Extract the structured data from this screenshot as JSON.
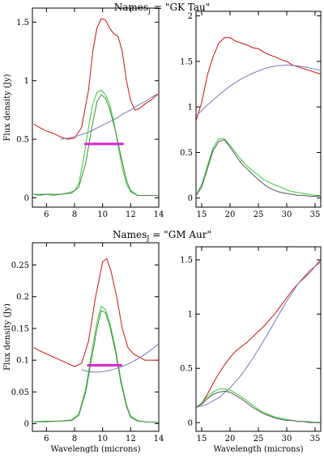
{
  "chart_data": [
    {
      "type": "line",
      "title": "Names",
      "title_sub": "J",
      "title_suffix": " = \"GK Tau\"",
      "ylabel": "Flux density (Jy)",
      "xlabel": "",
      "xlim": [
        5,
        14
      ],
      "ylim": [
        -0.08,
        1.62
      ],
      "xticks": [
        6,
        8,
        10,
        12,
        14
      ],
      "yticks": [
        0,
        0.5,
        1,
        1.5
      ],
      "ytick_labels": [
        "0",
        "0.5",
        "1",
        "1.5"
      ],
      "series": [
        {
          "color": "#cc1111",
          "x": [
            5.1,
            5.5,
            6,
            6.5,
            7,
            7.5,
            8,
            8.5,
            9,
            9.3,
            9.6,
            9.9,
            10.2,
            10.5,
            10.8,
            11.1,
            11.4,
            11.7,
            12,
            12.3,
            12.6,
            13,
            13.5,
            14
          ],
          "y": [
            0.63,
            0.6,
            0.57,
            0.55,
            0.52,
            0.5,
            0.51,
            0.6,
            0.92,
            1.25,
            1.45,
            1.53,
            1.52,
            1.45,
            1.4,
            1.38,
            1.25,
            1.0,
            0.83,
            0.75,
            0.76,
            0.8,
            0.84,
            0.89
          ]
        },
        {
          "color": "#7777bb",
          "x": [
            7,
            7.5,
            8,
            8.5,
            9,
            9.5,
            10,
            10.5,
            11,
            11.5,
            12,
            12.5,
            13,
            13.5,
            14
          ],
          "y": [
            0.5,
            0.51,
            0.52,
            0.54,
            0.56,
            0.59,
            0.62,
            0.65,
            0.68,
            0.72,
            0.75,
            0.79,
            0.82,
            0.86,
            0.89
          ]
        },
        {
          "color": "#33cc33",
          "x": [
            5.1,
            5.5,
            6,
            6.5,
            7,
            7.5,
            8,
            8.3,
            8.6,
            9,
            9.3,
            9.6,
            9.9,
            10.2,
            10.5,
            10.8,
            11.1,
            11.4,
            11.7,
            12,
            12.5,
            13,
            13.5,
            14
          ],
          "y": [
            0.03,
            0.02,
            0.03,
            0.02,
            0.03,
            0.04,
            0.06,
            0.12,
            0.3,
            0.6,
            0.8,
            0.9,
            0.92,
            0.88,
            0.8,
            0.65,
            0.45,
            0.26,
            0.12,
            0.05,
            0.02,
            0.02,
            0.02,
            0.02
          ]
        },
        {
          "color": "#448844",
          "x": [
            5.1,
            6,
            7,
            7.8,
            8.3,
            8.8,
            9.2,
            9.6,
            9.9,
            10.2,
            10.5,
            10.9,
            11.3,
            11.7,
            12,
            12.5,
            13,
            14
          ],
          "y": [
            0.03,
            0.03,
            0.03,
            0.04,
            0.09,
            0.3,
            0.58,
            0.82,
            0.88,
            0.85,
            0.76,
            0.58,
            0.36,
            0.15,
            0.06,
            0.02,
            0.02,
            0.02
          ]
        },
        {
          "color": "#dd22cc",
          "width": 3,
          "x": [
            8.7,
            11.5
          ],
          "y": [
            0.46,
            0.46
          ]
        }
      ]
    },
    {
      "type": "line",
      "xlim": [
        14,
        36
      ],
      "ylim": [
        -0.1,
        2.05
      ],
      "xticks": [
        15,
        20,
        25,
        30,
        35
      ],
      "yticks": [
        0,
        0.5,
        1,
        1.5,
        2
      ],
      "ytick_labels": [
        "0",
        "0.5",
        "1",
        "1.5",
        "2"
      ],
      "series": [
        {
          "color": "#cc1111",
          "x": [
            14,
            15,
            16,
            17,
            18,
            19,
            20,
            21,
            22,
            23,
            24,
            25,
            26,
            27,
            28,
            29,
            30,
            31,
            32,
            33,
            34,
            35,
            36
          ],
          "y": [
            0.85,
            1.05,
            1.35,
            1.55,
            1.7,
            1.76,
            1.76,
            1.72,
            1.7,
            1.68,
            1.65,
            1.64,
            1.6,
            1.57,
            1.55,
            1.52,
            1.5,
            1.46,
            1.44,
            1.42,
            1.4,
            1.38,
            1.36
          ]
        },
        {
          "color": "#7777bb",
          "x": [
            14,
            16,
            18,
            20,
            22,
            24,
            26,
            28,
            30,
            32,
            34,
            36
          ],
          "y": [
            0.9,
            1.02,
            1.13,
            1.23,
            1.31,
            1.37,
            1.42,
            1.45,
            1.46,
            1.45,
            1.43,
            1.4
          ]
        },
        {
          "color": "#33cc33",
          "x": [
            14,
            15,
            16,
            17,
            18,
            19,
            20,
            21,
            22,
            23,
            24,
            25,
            26,
            27,
            28,
            29,
            30,
            31,
            32,
            33,
            34,
            35,
            36
          ],
          "y": [
            0.03,
            0.15,
            0.35,
            0.55,
            0.65,
            0.65,
            0.58,
            0.5,
            0.42,
            0.35,
            0.3,
            0.25,
            0.2,
            0.17,
            0.14,
            0.12,
            0.09,
            0.07,
            0.06,
            0.05,
            0.04,
            0.03,
            0.03
          ]
        },
        {
          "color": "#555555",
          "x": [
            14,
            15,
            16,
            17,
            18,
            19,
            20,
            21,
            22,
            23,
            24,
            25,
            26,
            27,
            28,
            29,
            30,
            31,
            32,
            33,
            34,
            35,
            36
          ],
          "y": [
            0.03,
            0.12,
            0.32,
            0.52,
            0.62,
            0.64,
            0.56,
            0.47,
            0.38,
            0.32,
            0.26,
            0.2,
            0.15,
            0.11,
            0.08,
            0.06,
            0.05,
            0.04,
            0.03,
            0.03,
            0.02,
            0.02,
            0.02
          ]
        }
      ]
    },
    {
      "type": "line",
      "title": "Names",
      "title_sub": "J",
      "title_suffix": " = \"GM Aur\"",
      "ylabel": "Flux density (Jy)",
      "xlabel": "Wavelength (microns)",
      "xlim": [
        5,
        14
      ],
      "ylim": [
        -0.012,
        0.285
      ],
      "xticks": [
        6,
        8,
        10,
        12,
        14
      ],
      "yticks": [
        0,
        0.05,
        0.1,
        0.15,
        0.2,
        0.25
      ],
      "ytick_labels": [
        "0",
        "0.05",
        "0.1",
        "0.15",
        "0.2",
        "0.25"
      ],
      "series": [
        {
          "color": "#cc1111",
          "x": [
            5.1,
            5.5,
            6,
            6.5,
            7,
            7.5,
            8,
            8.5,
            9,
            9.5,
            10,
            10.3,
            10.6,
            11,
            11.4,
            11.8,
            12.2,
            12.6,
            13,
            13.5,
            14
          ],
          "y": [
            0.12,
            0.115,
            0.11,
            0.105,
            0.1,
            0.095,
            0.09,
            0.095,
            0.13,
            0.2,
            0.255,
            0.26,
            0.24,
            0.2,
            0.15,
            0.12,
            0.11,
            0.105,
            0.1,
            0.1,
            0.1
          ]
        },
        {
          "color": "#7777bb",
          "x": [
            8.5,
            9,
            9.5,
            10,
            10.5,
            11,
            11.5,
            12,
            12.5,
            13,
            13.5,
            14
          ],
          "y": [
            0.085,
            0.082,
            0.081,
            0.082,
            0.084,
            0.087,
            0.091,
            0.096,
            0.102,
            0.109,
            0.117,
            0.126
          ]
        },
        {
          "color": "#33cc33",
          "x": [
            5.1,
            6,
            7,
            7.8,
            8.3,
            8.8,
            9.2,
            9.6,
            9.9,
            10.2,
            10.5,
            10.9,
            11.3,
            11.7,
            12,
            12.5,
            13,
            14
          ],
          "y": [
            0.003,
            0.004,
            0.004,
            0.006,
            0.015,
            0.055,
            0.11,
            0.16,
            0.185,
            0.18,
            0.16,
            0.12,
            0.07,
            0.03,
            0.012,
            0.005,
            0.003,
            0.002
          ]
        },
        {
          "color": "#448844",
          "x": [
            5.1,
            6,
            7,
            7.8,
            8.3,
            8.8,
            9.2,
            9.6,
            9.9,
            10.2,
            10.5,
            10.9,
            11.3,
            11.7,
            12,
            12.5,
            13,
            14
          ],
          "y": [
            0.003,
            0.003,
            0.004,
            0.005,
            0.013,
            0.05,
            0.1,
            0.15,
            0.178,
            0.175,
            0.155,
            0.115,
            0.065,
            0.027,
            0.01,
            0.004,
            0.003,
            0.002
          ]
        },
        {
          "color": "#dd22cc",
          "width": 3,
          "x": [
            8.9,
            11.4
          ],
          "y": [
            0.092,
            0.092
          ]
        }
      ]
    },
    {
      "type": "line",
      "xlabel": "Wavelength (microns)",
      "xlim": [
        14,
        36
      ],
      "ylim": [
        -0.08,
        1.62
      ],
      "xticks": [
        15,
        20,
        25,
        30,
        35
      ],
      "yticks": [
        0,
        0.5,
        1,
        1.5
      ],
      "ytick_labels": [
        "0",
        "0.5",
        "1",
        "1.5"
      ],
      "series": [
        {
          "color": "#cc1111",
          "x": [
            14,
            15,
            16,
            17,
            18,
            19,
            20,
            21,
            22,
            23,
            24,
            25,
            26,
            27,
            28,
            29,
            30,
            31,
            32,
            33,
            34,
            35,
            36
          ],
          "y": [
            0.14,
            0.18,
            0.26,
            0.36,
            0.45,
            0.53,
            0.6,
            0.66,
            0.7,
            0.74,
            0.79,
            0.84,
            0.89,
            0.95,
            1.01,
            1.08,
            1.15,
            1.22,
            1.28,
            1.33,
            1.38,
            1.44,
            1.5
          ]
        },
        {
          "color": "#7777bb",
          "x": [
            14,
            16,
            18,
            20,
            22,
            24,
            26,
            28,
            30,
            32,
            34,
            36
          ],
          "y": [
            0.14,
            0.17,
            0.23,
            0.32,
            0.44,
            0.59,
            0.76,
            0.94,
            1.12,
            1.28,
            1.4,
            1.48
          ]
        },
        {
          "color": "#33cc33",
          "x": [
            14,
            15,
            16,
            17,
            18,
            19,
            20,
            21,
            22,
            23,
            24,
            25,
            26,
            27,
            28,
            29,
            30,
            31,
            32,
            33,
            34,
            35,
            36
          ],
          "y": [
            0.14,
            0.18,
            0.24,
            0.28,
            0.31,
            0.31,
            0.3,
            0.27,
            0.24,
            0.2,
            0.16,
            0.12,
            0.09,
            0.07,
            0.05,
            0.04,
            0.03,
            0.02,
            0.01,
            0.01,
            0.01,
            0.0,
            0.0
          ]
        },
        {
          "color": "#555555",
          "x": [
            14,
            15,
            16,
            17,
            18,
            19,
            20,
            21,
            22,
            23,
            24,
            25,
            26,
            27,
            28,
            29,
            30,
            31,
            32,
            33,
            34,
            35,
            36
          ],
          "y": [
            0.14,
            0.17,
            0.22,
            0.26,
            0.28,
            0.29,
            0.28,
            0.25,
            0.22,
            0.18,
            0.14,
            0.11,
            0.08,
            0.06,
            0.04,
            0.03,
            0.02,
            0.02,
            0.01,
            0.01,
            0.0,
            0.0,
            0.0
          ]
        }
      ]
    }
  ]
}
